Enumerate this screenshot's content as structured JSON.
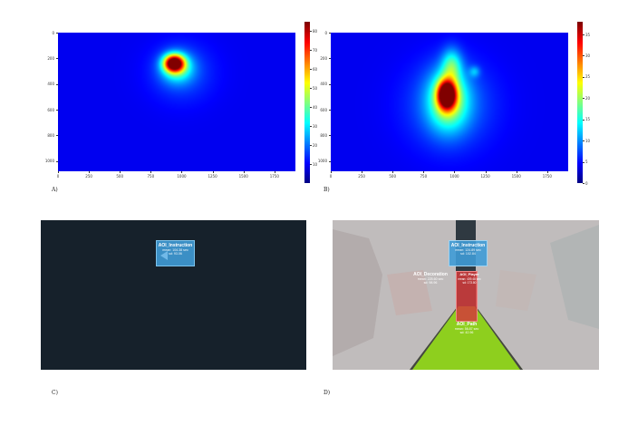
{
  "chart_data": [
    {
      "type": "heatmap",
      "panel": "A)",
      "xticks": [
        "0",
        "250",
        "500",
        "750",
        "1000",
        "1250",
        "1500",
        "1750"
      ],
      "yticks": [
        "0",
        "200",
        "400",
        "600",
        "800",
        "1000"
      ],
      "xlim": [
        0,
        1920
      ],
      "ylim": [
        1080,
        0
      ],
      "colorbar": {
        "ticks": [
          "10",
          "20",
          "30",
          "40",
          "50",
          "60",
          "70",
          "80"
        ],
        "min": 0,
        "max": 85,
        "colormap": "jet"
      },
      "hotspots": [
        {
          "x": 935,
          "y": 235,
          "sx": 55,
          "sy": 45,
          "value": 85
        },
        {
          "x": 960,
          "y": 270,
          "sx": 90,
          "sy": 80,
          "value": 28
        },
        {
          "x": 1000,
          "y": 310,
          "sx": 180,
          "sy": 160,
          "value": 9
        }
      ]
    },
    {
      "type": "heatmap",
      "panel": "B)",
      "xticks": [
        "0",
        "250",
        "500",
        "750",
        "1000",
        "1250",
        "1500",
        "1750"
      ],
      "yticks": [
        "0",
        "200",
        "400",
        "600",
        "800",
        "1000"
      ],
      "xlim": [
        0,
        1920
      ],
      "ylim": [
        1080,
        0
      ],
      "colorbar": {
        "ticks": [
          "0",
          "5",
          "10",
          "15",
          "20",
          "25",
          "30",
          "35"
        ],
        "min": 0,
        "max": 38,
        "colormap": "jet"
      },
      "hotspots": [
        {
          "x": 935,
          "y": 480,
          "sx": 50,
          "sy": 75,
          "value": 38
        },
        {
          "x": 945,
          "y": 520,
          "sx": 110,
          "sy": 160,
          "value": 16
        },
        {
          "x": 975,
          "y": 250,
          "sx": 55,
          "sy": 90,
          "value": 11
        },
        {
          "x": 1160,
          "y": 300,
          "sx": 30,
          "sy": 30,
          "value": 6
        },
        {
          "x": 960,
          "y": 560,
          "sx": 240,
          "sy": 230,
          "value": 6
        }
      ]
    }
  ],
  "panels": {
    "a_label": "A)",
    "b_label": "B)",
    "c_label": "C)",
    "d_label": "D)"
  },
  "aoi_c": {
    "name": "AOI_Instruction",
    "mean": "mean: 104.38 sec",
    "sd": "sd: 93.06"
  },
  "aoi_d": {
    "instruction": {
      "name": "AOI_Instruction",
      "mean": "mean: 124.89 sec",
      "sd": "sd: 102.84"
    },
    "decoration": {
      "name": "AOI_Decoration",
      "mean": "mean: 225.60 sec",
      "sd": "sd: 98.96"
    },
    "player": {
      "name": "AOI_Player",
      "mean": "mean: 409.48 sec",
      "sd": "sd: 173.80"
    },
    "path": {
      "name": "AOI_Path",
      "mean": "mean: 56.87 sec",
      "sd": "sd: 42.96"
    }
  },
  "colors": {
    "heatmap_background": "#0a17e0",
    "panel_c_background": "#16212b",
    "aoi_blue": "#3f9bd6",
    "aoi_red": "#d23b3b",
    "aoi_green": "#8ecf1e",
    "scene_gray": "#b9b4b4"
  }
}
